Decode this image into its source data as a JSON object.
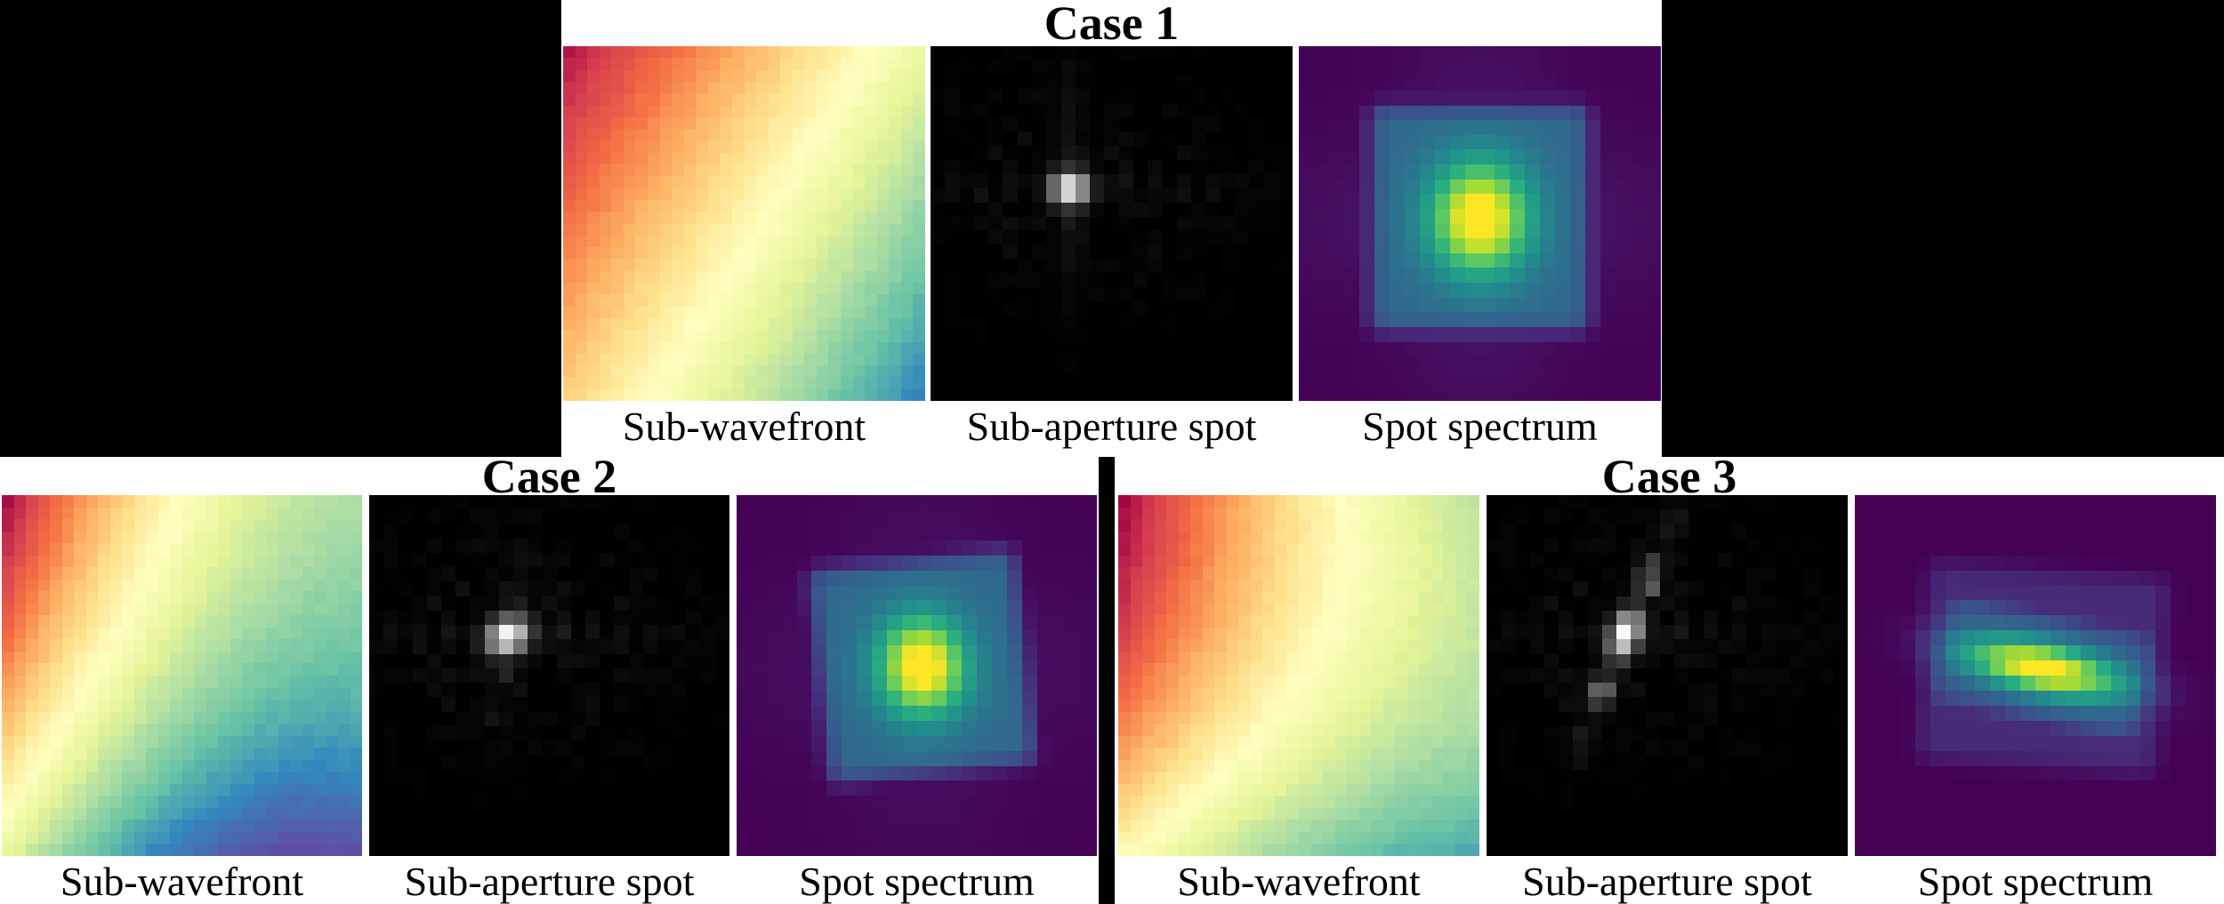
{
  "figure": {
    "background": "#000000",
    "panel_background": "#ffffff",
    "text_color": "#000000",
    "description": "Three-case comparison figure for Shack-Hartmann style wavefront sensing: each case shows the sub-wavefront phase map (Spectral colormap), the resulting sub-aperture focal spot (grayscale), and the spot spectrum (viridis colormap)."
  },
  "chart_data": {
    "type": "heatmap",
    "colormaps": {
      "spectral": [
        [
          0,
          "#9e0142"
        ],
        [
          0.1,
          "#d53e4f"
        ],
        [
          0.2,
          "#f46d43"
        ],
        [
          0.3,
          "#fdae61"
        ],
        [
          0.4,
          "#fee08b"
        ],
        [
          0.5,
          "#ffffbf"
        ],
        [
          0.6,
          "#e6f598"
        ],
        [
          0.7,
          "#abdda4"
        ],
        [
          0.8,
          "#66c2a5"
        ],
        [
          0.9,
          "#3288bd"
        ],
        [
          1,
          "#5e4fa2"
        ]
      ],
      "viridis": [
        [
          0,
          "#440154"
        ],
        [
          0.125,
          "#472d7b"
        ],
        [
          0.25,
          "#3b528b"
        ],
        [
          0.375,
          "#2c728e"
        ],
        [
          0.5,
          "#21918c"
        ],
        [
          0.625,
          "#27ad81"
        ],
        [
          0.75,
          "#5ec962"
        ],
        [
          0.875,
          "#aadc32"
        ],
        [
          1,
          "#fde725"
        ]
      ],
      "gray": [
        [
          0,
          "#000000"
        ],
        [
          1,
          "#ffffff"
        ]
      ]
    },
    "cases": [
      {
        "title": "Case 1",
        "panels": [
          {
            "label": "Sub-wavefront",
            "type": "heatmap",
            "colormap": "spectral",
            "model": "wavefront",
            "grid": 30,
            "coeffs": [
              0.03,
              0.55,
              0.34,
              0.0,
              0.0,
              0.0
            ],
            "depicts": "near-linear tilted wavefront, phase low (dark red) at upper-left rising to high (blue) at lower-right, pale-yellow ridge on the anti-diagonal"
          },
          {
            "label": "Sub-aperture spot",
            "type": "heatmap",
            "colormap": "gray",
            "model": "psf",
            "grid": 25,
            "center": [
              0.385,
              0.4
            ],
            "core": {
              "sx": 0.034,
              "sy": 0.031,
              "angle": 0,
              "amp": 1
            },
            "arms": [
              {
                "angle": -90,
                "amp": 0.1,
                "sw": 0.026,
                "len": 0.2,
                "freq": 78
              },
              {
                "angle": 0,
                "amp": 0.05,
                "sw": 0.024,
                "len": 0.35,
                "freq": 78
              }
            ],
            "noise": 0.045,
            "depicts": "compact diffraction-limited white spot just above-left of centre with faint vertical and horizontal sidelobe arms"
          },
          {
            "label": "Spot spectrum",
            "type": "heatmap",
            "colormap": "viridis",
            "model": "spectrum",
            "grid": 24,
            "center": [
              0.5,
              0.485
            ],
            "core": [
              0.095,
              0.11
            ],
            "coreAngle": 0,
            "coreAmp": 0.75,
            "boxes": [
              {
                "half": [
                  0.3,
                  0.315
                ],
                "amp": 0.34,
                "angle": 0
              }
            ],
            "arms": 0.07,
            "depicts": "centred symmetric spectrum: yellow-green core fading through teal and blue inside a soft square plateau on a dark purple background"
          }
        ]
      },
      {
        "title": "Case 2",
        "panels": [
          {
            "label": "Sub-wavefront",
            "type": "heatmap",
            "colormap": "spectral",
            "model": "wavefront",
            "grid": 30,
            "coeffs": [
              0.0,
              1.3,
              0.4,
              -0.6,
              0.18,
              -0.28
            ],
            "depicts": "curved (tilt + defocus) wavefront, dark red at upper-left, curved pale-yellow arc from top-centre to lower-left, teal/blue toward lower-right"
          },
          {
            "label": "Sub-aperture spot",
            "type": "heatmap",
            "colormap": "gray",
            "model": "psf",
            "grid": 25,
            "center": [
              0.385,
              0.39
            ],
            "core": {
              "sx": 0.04,
              "sy": 0.032,
              "angle": -25,
              "amp": 1
            },
            "arms": [
              {
                "angle": -80,
                "amp": 0.11,
                "sw": 0.028,
                "len": 0.16,
                "freq": 55
              },
              {
                "angle": 0,
                "amp": 0.06,
                "sw": 0.026,
                "len": 0.33,
                "freq": 78
              }
            ],
            "noise": 0.055,
            "depicts": "slightly blurred white spot above-left of centre with weak tilted sidelobes and speckle"
          },
          {
            "label": "Spot spectrum",
            "type": "heatmap",
            "colormap": "viridis",
            "model": "spectrum",
            "grid": 24,
            "center": [
              0.515,
              0.475
            ],
            "core": [
              0.085,
              0.095
            ],
            "coreAngle": -6,
            "coreAmp": 0.75,
            "boxes": [
              {
                "half": [
                  0.285,
                  0.295
                ],
                "amp": 0.34,
                "angle": -6
              }
            ],
            "arms": 0.05,
            "depicts": "slightly rotated spectrum blob, small yellow core right of centre within a tilted soft square plateau"
          }
        ]
      },
      {
        "title": "Case 3",
        "panels": [
          {
            "label": "Sub-wavefront",
            "type": "heatmap",
            "colormap": "spectral",
            "model": "wavefront",
            "grid": 30,
            "coeffs": [
              0.0,
              1.0,
              0.12,
              -0.32,
              0.36,
              -0.31
            ],
            "depicts": "strongly curved wavefront, dark red at upper-left, pale-yellow arc bowing from top-centre to bottom-left corner, teal-blue at lower-right"
          },
          {
            "label": "Sub-aperture spot",
            "type": "heatmap",
            "colormap": "gray",
            "model": "psf",
            "grid": 25,
            "center": [
              0.385,
              0.385
            ],
            "core": {
              "sx": 0.045,
              "sy": 0.026,
              "angle": -68,
              "amp": 1
            },
            "arms": [
              {
                "angle": -68,
                "amp": 0.6,
                "sw": 0.024,
                "len": 0.16,
                "freq": 36
              },
              {
                "angle": 0,
                "amp": 0.045,
                "sw": 0.026,
                "len": 0.3,
                "freq": 78
              }
            ],
            "noise": 0.05,
            "depicts": "elongated white streak tilted up-to-the-right (NNE-SSW) with bright core and beaded sidelobes"
          },
          {
            "label": "Spot spectrum",
            "type": "heatmap",
            "colormap": "viridis",
            "model": "spectrum",
            "grid": 24,
            "center": [
              0.52,
              0.48
            ],
            "core": [
              0.16,
              0.05
            ],
            "coreAngle": 12,
            "coreAmp": 0.8,
            "boxes": [
              {
                "half": [
                  0.33,
                  0.27
                ],
                "amp": 0.12,
                "angle": 4
              },
              {
                "half": [
                  0.3,
                  0.16
                ],
                "amp": 0.25,
                "angle": 12
              }
            ],
            "arms": 0,
            "depicts": "anisotropic spectrum: yellow-green ellipse elongated and tilted down-to-the-right inside a dim sheared plateau"
          }
        ]
      }
    ]
  }
}
